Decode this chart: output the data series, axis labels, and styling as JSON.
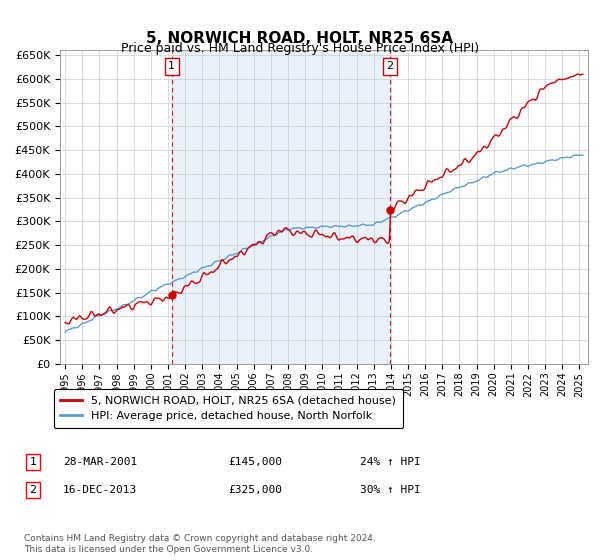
{
  "title": "5, NORWICH ROAD, HOLT, NR25 6SA",
  "subtitle": "Price paid vs. HM Land Registry's House Price Index (HPI)",
  "ylim": [
    0,
    660000
  ],
  "yticks": [
    0,
    50000,
    100000,
    150000,
    200000,
    250000,
    300000,
    350000,
    400000,
    450000,
    500000,
    550000,
    600000,
    650000
  ],
  "line1_color": "#cc0000",
  "line2_color": "#5b9bd5",
  "grid_color": "#cccccc",
  "bg_color": "#ffffff",
  "chart_bg": "#e8f0f8",
  "marker1_date_x": 2001.22,
  "marker1_y": 145000,
  "marker2_date_x": 2013.96,
  "marker2_y": 325000,
  "legend_line1": "5, NORWICH ROAD, HOLT, NR25 6SA (detached house)",
  "legend_line2": "HPI: Average price, detached house, North Norfolk",
  "table_data": [
    [
      "1",
      "28-MAR-2001",
      "£145,000",
      "24% ↑ HPI"
    ],
    [
      "2",
      "16-DEC-2013",
      "£325,000",
      "30% ↑ HPI"
    ]
  ],
  "footnote": "Contains HM Land Registry data © Crown copyright and database right 2024.\nThis data is licensed under the Open Government Licence v3.0.",
  "xmin": 1994.7,
  "xmax": 2025.5
}
